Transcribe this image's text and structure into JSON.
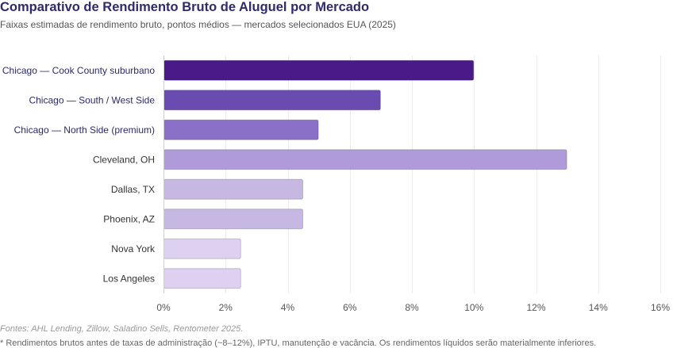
{
  "chart_data": {
    "type": "bar",
    "orientation": "horizontal",
    "title": "Comparativo de Rendimento Bruto de Aluguel por Mercado",
    "subtitle": "Faixas estimadas de rendimento bruto, pontos médios — mercados selecionados EUA (2025)",
    "categories": [
      "Chicago — Cook County suburbano",
      "Chicago — South / West Side",
      "Chicago — North Side (premium)",
      "Cleveland, OH",
      "Dallas, TX",
      "Phoenix, AZ",
      "Nova York",
      "Los Angeles"
    ],
    "values": [
      10,
      7,
      5,
      13,
      4.5,
      4.5,
      2.5,
      2.5
    ],
    "colors": [
      "#4a1a88",
      "#6a4bb0",
      "#8b70c8",
      "#af9bd9",
      "#c6b8e3",
      "#c6b8e3",
      "#ddd0f0",
      "#ddd0f0"
    ],
    "label_colors": [
      "#2a2a6a",
      "#2a2a6a",
      "#2a2a6a",
      "#333333",
      "#333333",
      "#333333",
      "#333333",
      "#333333"
    ],
    "xlabel": "",
    "ylabel": "",
    "xlim": [
      0,
      16
    ],
    "xticks": [
      0,
      2,
      4,
      6,
      8,
      10,
      12,
      14,
      16
    ],
    "xtick_labels": [
      "0%",
      "2%",
      "4%",
      "6%",
      "8%",
      "10%",
      "12%",
      "14%",
      "16%"
    ],
    "grid": true,
    "legend": "none"
  },
  "footnotes": {
    "source": "Fontes: AHL Lending, Zillow, Saladino Sells, Rentometer 2025.",
    "note": "* Rendimentos brutos antes de taxas de administração (~8–12%), IPTU, manutenção e vacância. Os rendimentos líquidos serão materialmente inferiores."
  }
}
